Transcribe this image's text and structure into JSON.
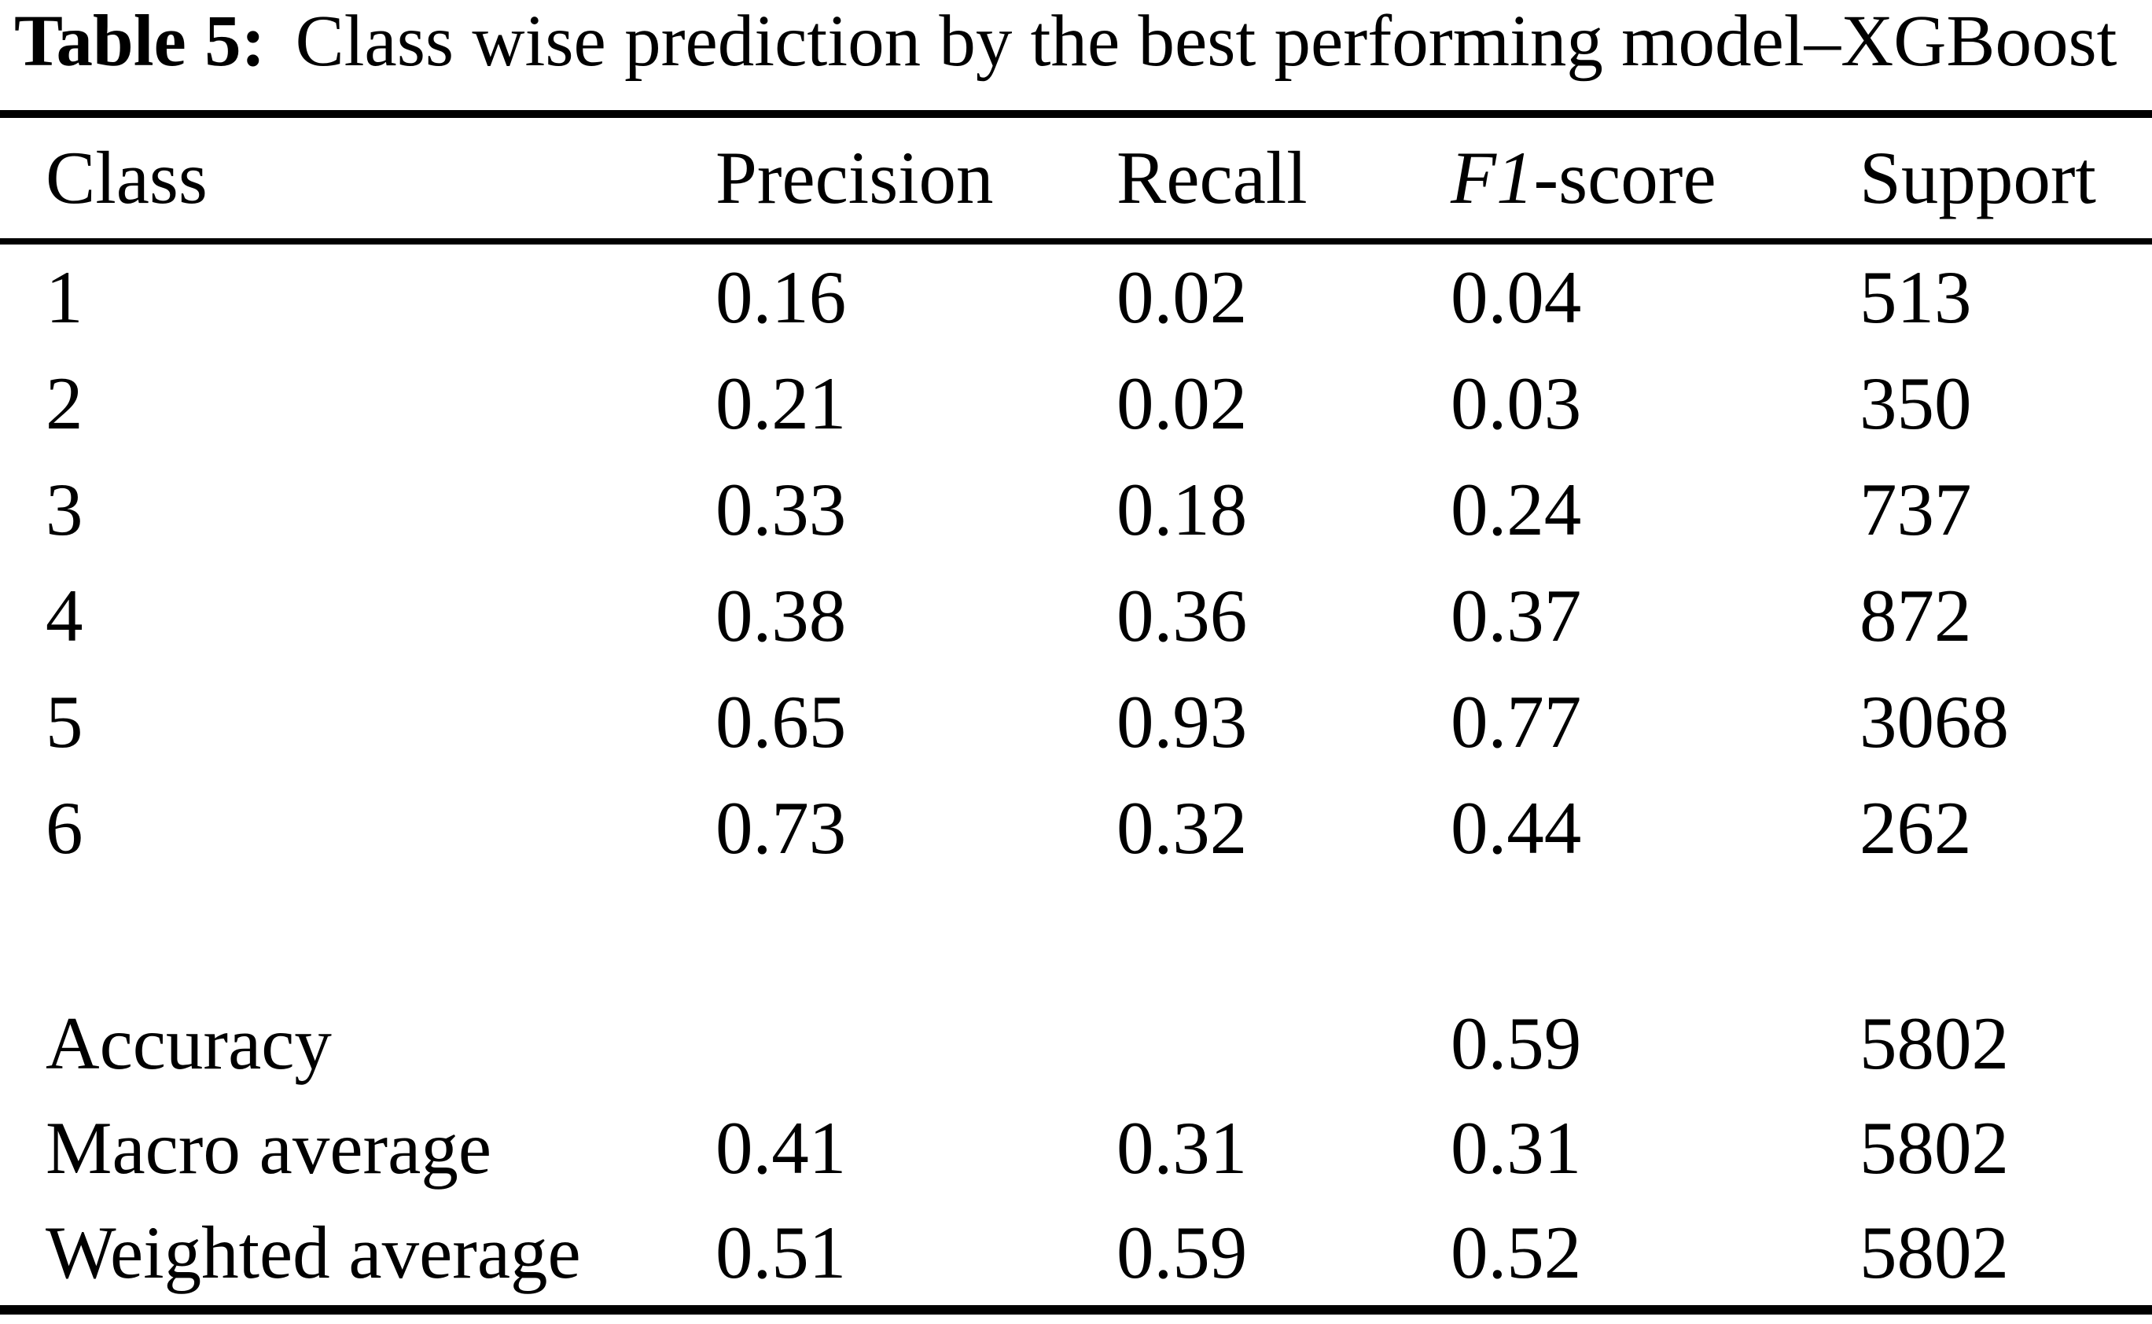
{
  "table": {
    "caption": {
      "label": "Table 5:",
      "text": "Class wise prediction by the best performing model–XGBoost"
    },
    "header": {
      "class": "Class",
      "precision": "Precision",
      "recall": "Recall",
      "f1_italic": "F1",
      "f1_rest": "-score",
      "support": "Support"
    },
    "rows": [
      {
        "label": "1",
        "precision": "0.16",
        "recall": "0.02",
        "f1": "0.04",
        "support": "513"
      },
      {
        "label": "2",
        "precision": "0.21",
        "recall": "0.02",
        "f1": "0.03",
        "support": "350"
      },
      {
        "label": "3",
        "precision": "0.33",
        "recall": "0.18",
        "f1": "0.24",
        "support": "737"
      },
      {
        "label": "4",
        "precision": "0.38",
        "recall": "0.36",
        "f1": "0.37",
        "support": "872"
      },
      {
        "label": "5",
        "precision": "0.65",
        "recall": "0.93",
        "f1": "0.77",
        "support": "3068"
      },
      {
        "label": "6",
        "precision": "0.73",
        "recall": "0.32",
        "f1": "0.44",
        "support": "262"
      }
    ],
    "summary_rows": [
      {
        "label": "Accuracy",
        "precision": "",
        "recall": "",
        "f1": "0.59",
        "support": "5802"
      },
      {
        "label": "Macro average",
        "precision": "0.41",
        "recall": "0.31",
        "f1": "0.31",
        "support": "5802"
      },
      {
        "label": "Weighted average",
        "precision": "0.51",
        "recall": "0.59",
        "f1": "0.52",
        "support": "5802"
      }
    ]
  },
  "colors": {
    "text": "#000000",
    "background": "#ffffff",
    "rule": "#000000"
  },
  "chart_data": {
    "type": "table",
    "title": "Table 5: Class wise prediction by the best performing model–XGBoost",
    "columns": [
      "Class",
      "Precision",
      "Recall",
      "F1-score",
      "Support"
    ],
    "rows": [
      [
        "1",
        0.16,
        0.02,
        0.04,
        513
      ],
      [
        "2",
        0.21,
        0.02,
        0.03,
        350
      ],
      [
        "3",
        0.33,
        0.18,
        0.24,
        737
      ],
      [
        "4",
        0.38,
        0.36,
        0.37,
        872
      ],
      [
        "5",
        0.65,
        0.93,
        0.77,
        3068
      ],
      [
        "6",
        0.73,
        0.32,
        0.44,
        262
      ],
      [
        "Accuracy",
        null,
        null,
        0.59,
        5802
      ],
      [
        "Macro average",
        0.41,
        0.31,
        0.31,
        5802
      ],
      [
        "Weighted average",
        0.51,
        0.59,
        0.52,
        5802
      ]
    ]
  }
}
